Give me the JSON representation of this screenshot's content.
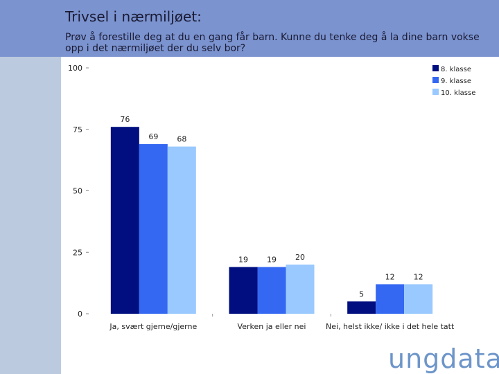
{
  "header": {
    "title": "Trivsel i nærmiljøet:",
    "subtitle": "Prøv å forestille deg at du en gang får barn. Kunne du tenke deg å la dine barn vokse opp i det nærmiljøet der du selv bor?"
  },
  "logo": {
    "text": "ungdata"
  },
  "colors": {
    "header": "#7b93cf",
    "sidebar": "#bccae0",
    "series1": "#000e7f",
    "series2": "#3468f2",
    "series3": "#99c9ff"
  },
  "chart_data": {
    "type": "bar",
    "categories": [
      "Ja, svært gjerne/gjerne",
      "Verken ja eller nei",
      "Nei, helst ikke/ ikke i det hele tatt"
    ],
    "series": [
      {
        "name": "8. klasse",
        "values": [
          76,
          19,
          5
        ],
        "color": "#000e7f"
      },
      {
        "name": "9. klasse",
        "values": [
          69,
          19,
          12
        ],
        "color": "#3468f2"
      },
      {
        "name": "10. klasse",
        "values": [
          68,
          20,
          12
        ],
        "color": "#99c9ff"
      }
    ],
    "data_labels": [
      [
        "76",
        "69",
        "68"
      ],
      [
        "19",
        "19",
        "20"
      ],
      [
        "5",
        "12",
        "12"
      ]
    ],
    "ylim": [
      0,
      100
    ],
    "yticks": [
      "0",
      "25",
      "50",
      "75",
      "100"
    ],
    "legend_position": "top-right",
    "grid": false
  }
}
